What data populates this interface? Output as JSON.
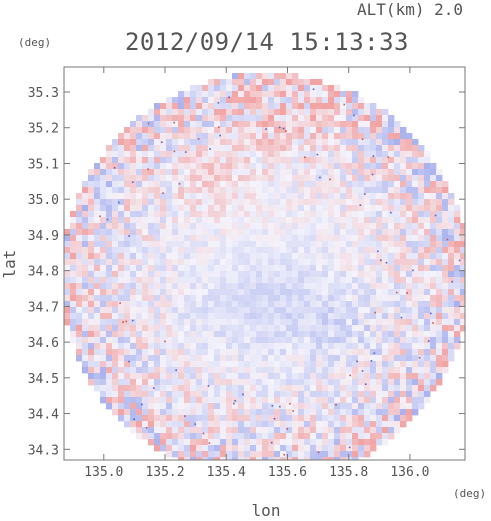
{
  "header": {
    "altitude_label": "ALT(km) 2.0",
    "timestamp": "2012/09/14 15:13:33"
  },
  "chart_data": {
    "type": "heatmap",
    "title": "2012/09/14 15:13:33",
    "subtitle": "ALT(km) 2.0",
    "xlabel": "lon",
    "ylabel": "lat",
    "x_unit": "(deg)",
    "y_unit": "(deg)",
    "xlim": [
      134.87,
      136.18
    ],
    "ylim": [
      34.27,
      35.37
    ],
    "x_ticks": [
      "135.0",
      "135.2",
      "135.4",
      "135.6",
      "135.8",
      "136.0"
    ],
    "y_ticks": [
      "34.3",
      "34.4",
      "34.5",
      "34.6",
      "34.7",
      "34.8",
      "34.9",
      "35.0",
      "35.1",
      "35.2",
      "35.3"
    ],
    "grid": false,
    "coverage": "circular radar scan",
    "colors": {
      "positive": "#f2a3a3",
      "negative": "#a9b2ee",
      "neutral": "#f4f3fb",
      "axis": "#777777",
      "text": "#555555"
    }
  }
}
